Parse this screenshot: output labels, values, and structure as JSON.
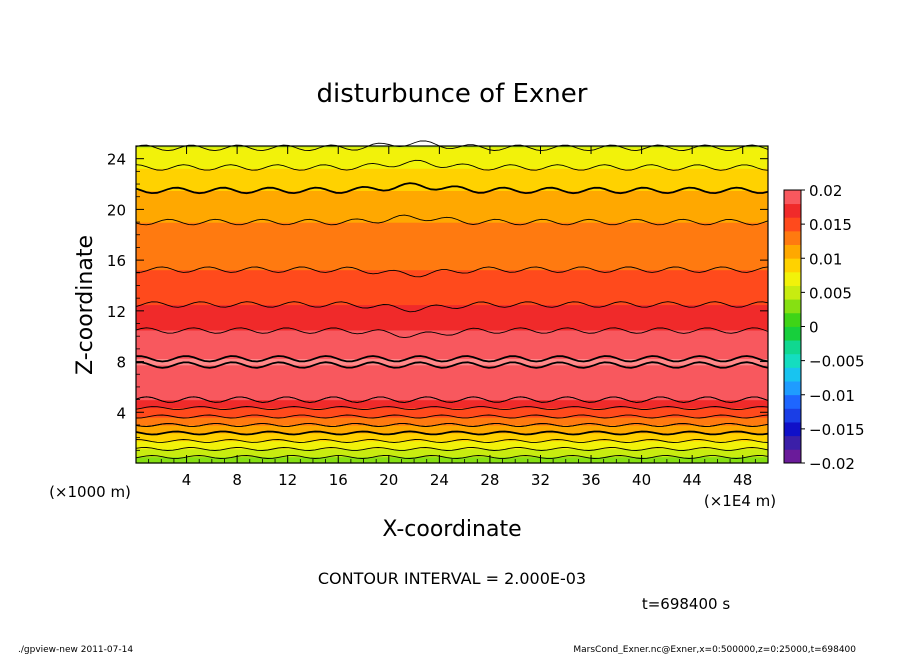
{
  "chart_data": {
    "type": "heatmap",
    "title": "disturbunce of Exner",
    "xlabel": "X-coordinate",
    "ylabel": "Z-coordinate",
    "x_unit_label": "(×1E4 m)",
    "y_unit_label": "(×1000 m)",
    "xlim": [
      0,
      50
    ],
    "ylim": [
      0,
      25
    ],
    "x_ticks": [
      4,
      8,
      12,
      16,
      20,
      24,
      28,
      32,
      36,
      40,
      44,
      48
    ],
    "y_ticks": [
      4,
      8,
      12,
      16,
      20,
      24
    ],
    "colorbar": {
      "levels": [
        -0.02,
        -0.018,
        -0.016,
        -0.014,
        -0.012,
        -0.01,
        -0.008,
        -0.006,
        -0.004,
        -0.002,
        0,
        0.002,
        0.004,
        0.006,
        0.008,
        0.01,
        0.012,
        0.014,
        0.016,
        0.018,
        0.02
      ],
      "tick_values": [
        0.02,
        0.015,
        0.01,
        0.005,
        0,
        -0.005,
        -0.01,
        -0.015,
        -0.02
      ],
      "tick_labels": [
        "0.02",
        "0.015",
        "0.01",
        "0.005",
        "0",
        "−0.005",
        "−0.01",
        "−0.015",
        "−0.02"
      ],
      "colors": [
        "#6a1b9a",
        "#3b1fa8",
        "#1010c8",
        "#1a3ee6",
        "#1e66ff",
        "#1f9cff",
        "#18c4f0",
        "#14ddc0",
        "#10d890",
        "#17cf3c",
        "#3fd417",
        "#86e012",
        "#c8ec10",
        "#f2f20a",
        "#ffd200",
        "#ffa800",
        "#ff7a10",
        "#ff4a1c",
        "#f02a2a",
        "#f8585e",
        "#ff8888"
      ]
    },
    "z_profile": [
      {
        "z": 0,
        "value": 0.0025
      },
      {
        "z": 3,
        "value": 0.012
      },
      {
        "z": 5,
        "value": 0.018
      },
      {
        "z": 8,
        "value": 0.0202
      },
      {
        "z": 11,
        "value": 0.0175
      },
      {
        "z": 13,
        "value": 0.0155
      },
      {
        "z": 16,
        "value": 0.0135
      },
      {
        "z": 20,
        "value": 0.0115
      },
      {
        "z": 22,
        "value": 0.0095
      },
      {
        "z": 24,
        "value": 0.0072
      },
      {
        "z": 25,
        "value": 0.0058
      }
    ],
    "contour_interval_text": "CONTOUR INTERVAL = 2.000E-03",
    "time_text": "t=698400 s"
  },
  "footer": {
    "left": "./gpview-new   2011-07-14",
    "right": "MarsCond_Exner.nc@Exner,x=0:500000,z=0:25000,t=698400"
  }
}
